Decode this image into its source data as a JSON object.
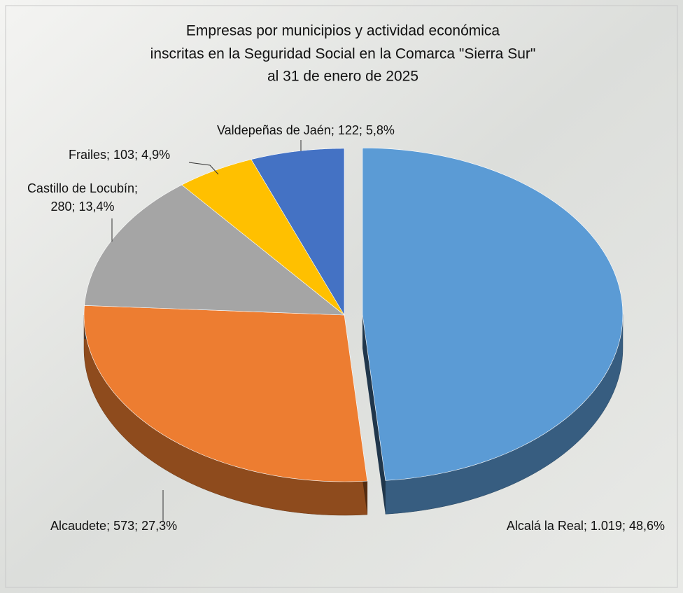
{
  "chart_data": {
    "type": "pie",
    "title": [
      "Empresas por municipios y actividad económica",
      "inscritas en la Seguridad Social en la Comarca \"Sierra Sur\"",
      "al 31 de enero de 2025"
    ],
    "categories": [
      "Alcalá la Real",
      "Alcaudete",
      "Castillo de Locubín",
      "Frailes",
      "Valdepeñas de Jaén"
    ],
    "values": [
      1019,
      573,
      280,
      103,
      122
    ],
    "value_labels": [
      "1.019",
      "573",
      "280",
      "103",
      "122"
    ],
    "percent_labels": [
      "48,6%",
      "27,3%",
      "13,4%",
      "4,9%",
      "5,8%"
    ],
    "label_separator": "; ",
    "colors": [
      "#5b9bd5",
      "#ed7d31",
      "#a5a5a5",
      "#ffc000",
      "#4472c4"
    ]
  }
}
